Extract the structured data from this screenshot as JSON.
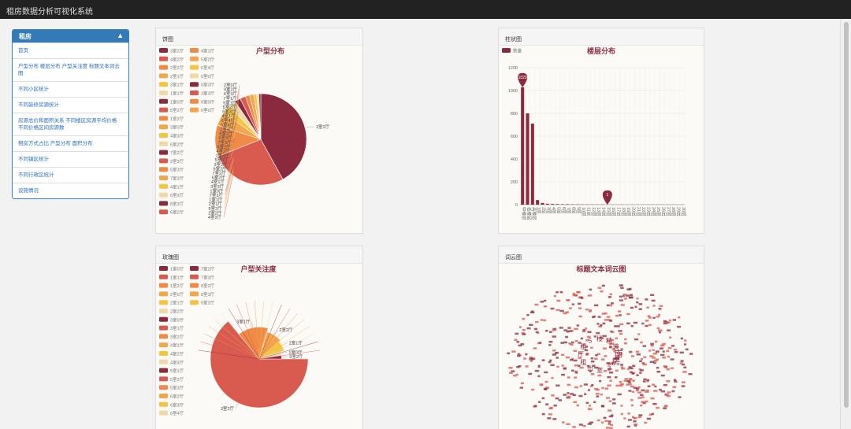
{
  "app": {
    "title": "租房数据分析可视化系统"
  },
  "sidebar": {
    "header": "租房",
    "items": [
      {
        "label": "首页"
      },
      {
        "label": "户型分布 楼层分布 户型关注度 标题文本词云图"
      },
      {
        "label": "不同小区统计"
      },
      {
        "label": "不同装修房源统计"
      },
      {
        "label": "房源总价和面积关系 不同楼区房源平均价格 不同价格区间房源数"
      },
      {
        "label": "租房方式占比 户型分布 面积分布"
      },
      {
        "label": "不同镇区统计"
      },
      {
        "label": "不同行政区统计"
      },
      {
        "label": "设施情况"
      }
    ]
  },
  "panels": {
    "pie": {
      "heading": "饼图"
    },
    "bar": {
      "heading": "柱状图"
    },
    "rose": {
      "heading": "玫瑰图"
    },
    "cloud": {
      "heading": "词云图"
    }
  },
  "colors": {
    "palette": [
      "#8b2a3f",
      "#d95b50",
      "#ef8a47",
      "#f3a64b",
      "#f3c542",
      "#eddaa9"
    ],
    "accent": "#337ab7"
  },
  "chart_data": [
    {
      "type": "pie",
      "title": "户型分布",
      "legend_position": "left",
      "legend": [
        "3室2厅",
        "4室2厅",
        "2室2厅",
        "2室1厅",
        "3室1厅",
        "1室1厅",
        "1室0厅",
        "5室2厅",
        "1室2厅",
        "3室0厅",
        "4室3厅",
        "6室2厅",
        "7室2厅",
        "2室3厅",
        "5室3厅",
        "7室3厅",
        "4室1厅",
        "6室3厅",
        "8室3厅",
        "6室2厅",
        "4室1厅",
        "5室2厅",
        "6室4厅",
        "6室0厅",
        "5室3厅",
        "3室3厅",
        "9室0厅",
        "0室0厅"
      ],
      "slices": [
        {
          "label": "3室2厅",
          "value": 42
        },
        {
          "label": "4室2厅",
          "value": 27
        },
        {
          "label": "2室2厅",
          "value": 11
        },
        {
          "label": "2室1厅",
          "value": 5
        },
        {
          "label": "3室1厅",
          "value": 3
        },
        {
          "label": "1室1厅",
          "value": 2.5
        },
        {
          "label": "4室3厅",
          "value": 2
        },
        {
          "label": "5室2厅",
          "value": 2
        },
        {
          "label": "2室0厅",
          "value": 1.5
        },
        {
          "label": "3室3厅",
          "value": 1.5
        },
        {
          "label": "5室3厅",
          "value": 1
        },
        {
          "label": "3室0厅",
          "value": 0.8
        },
        {
          "label": "9室2厅",
          "value": 0.7
        }
      ],
      "small_labels": [
        "2室0厅",
        "9室2厅",
        "4室3厅",
        "7室1厅",
        "5室1厅",
        "5室2厅",
        "6室3厅",
        "4室1厅",
        "6室4厅",
        "5室4厅",
        "1室4厅",
        "8室2厅",
        "6室3厅",
        "7室3厅",
        "8室2厅",
        "4室2厅",
        "1室3厅",
        "5室0厅",
        "3室2厅",
        "9室2厅",
        "7室2厅",
        "6室2厅",
        "4室1厅",
        "3室3厅",
        "1室0厅",
        "7室3厅",
        "1室1厅",
        "2室1厅",
        "5室2厅",
        "2室2厅",
        "4室2厅"
      ]
    },
    {
      "type": "bar",
      "title": "楼层分布",
      "legend": [
        "数量"
      ],
      "categories": [
        "中楼层",
        "低楼层",
        "高楼层",
        "1层",
        "2层",
        "3层",
        "4层",
        "5层",
        "6层",
        "7层",
        "8层",
        "9层",
        "10层",
        "11层",
        "12层",
        "13层",
        "14层",
        "15层",
        "16层",
        "17层",
        "18层",
        "19层",
        "20层",
        "21层",
        "22层",
        "23层",
        "24层",
        "25层",
        "26层",
        "27层",
        "28层",
        "29层",
        "30层"
      ],
      "values": [
        1029,
        800,
        710,
        40,
        15,
        8,
        6,
        5,
        4,
        4,
        3,
        3,
        2,
        2,
        2,
        2,
        2,
        1,
        1,
        1,
        1,
        1,
        1,
        1,
        1,
        1,
        1,
        1,
        1,
        1,
        1,
        1,
        1
      ],
      "ylim": [
        0,
        1200
      ],
      "yticks": [
        0,
        200,
        400,
        600,
        800,
        1000,
        1200
      ],
      "markers": [
        {
          "label": "1029",
          "category_index": 0
        },
        {
          "label": "1",
          "category_index": 17
        }
      ]
    },
    {
      "type": "pie",
      "title": "户型关注度",
      "legend_position": "left",
      "legend": [
        "1室0厅",
        "1室1厅",
        "1室2厅",
        "2室0厅",
        "2室1厅",
        "2室2厅",
        "3室0厅",
        "3室1厅",
        "3室2厅",
        "4室1厅",
        "4室2厅",
        "4室3厅",
        "5室1厅",
        "5室2厅",
        "5室3厅",
        "6室2厅",
        "6室3厅",
        "6室4厅",
        "7室2厅",
        "7室3厅",
        "8室2厅",
        "8室3厅",
        "9室2厅"
      ],
      "slices": [
        {
          "label": "3室2厅",
          "value": 50
        },
        {
          "label": "3室1厅",
          "value": 12
        },
        {
          "label": "2室2厅",
          "value": 7
        },
        {
          "label": "2室1厅",
          "value": 5
        },
        {
          "label": "1室0厅",
          "value": 2
        },
        {
          "label": "9室2厅",
          "value": 2
        }
      ]
    },
    {
      "type": "wordcloud",
      "title": "标题文本词云图",
      "words": [
        "南",
        "房",
        "2",
        "室",
        "出",
        "租",
        "厅",
        "租",
        "5",
        "楼",
        "精",
        "装"
      ]
    }
  ]
}
